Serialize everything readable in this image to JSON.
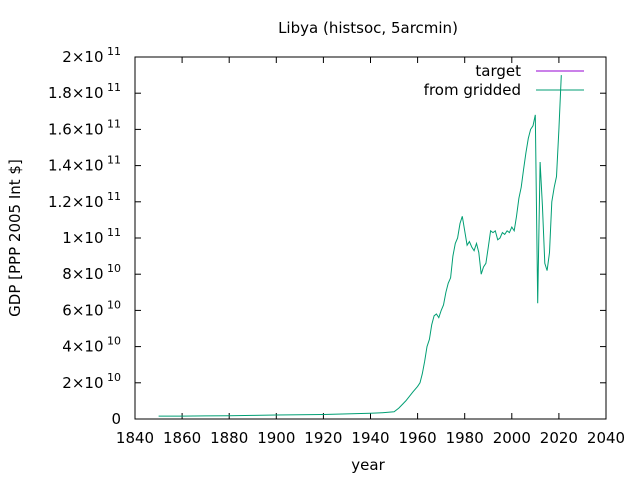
{
  "chart_data": {
    "type": "line",
    "title": "Libya (histsoc, 5arcmin)",
    "xlabel": "year",
    "ylabel": "GDP [PPP 2005 Int $]",
    "xlim": [
      1840,
      2040
    ],
    "ylim": [
      0,
      200000000000
    ],
    "grid": false,
    "legend_position": "top-right",
    "x_ticks": [
      {
        "value": 1840,
        "label": "1840"
      },
      {
        "value": 1860,
        "label": "1860"
      },
      {
        "value": 1880,
        "label": "1880"
      },
      {
        "value": 1900,
        "label": "1900"
      },
      {
        "value": 1920,
        "label": "1920"
      },
      {
        "value": 1940,
        "label": "1940"
      },
      {
        "value": 1960,
        "label": "1960"
      },
      {
        "value": 1980,
        "label": "1980"
      },
      {
        "value": 2000,
        "label": "2000"
      },
      {
        "value": 2020,
        "label": "2020"
      },
      {
        "value": 2040,
        "label": "2040"
      }
    ],
    "y_ticks": [
      {
        "value": 0,
        "mantissa": "0",
        "exponent": ""
      },
      {
        "value": 20000000000,
        "mantissa": "2×10",
        "exponent": "10"
      },
      {
        "value": 40000000000,
        "mantissa": "4×10",
        "exponent": "10"
      },
      {
        "value": 60000000000,
        "mantissa": "6×10",
        "exponent": "10"
      },
      {
        "value": 80000000000,
        "mantissa": "8×10",
        "exponent": "10"
      },
      {
        "value": 100000000000,
        "mantissa": "1×10",
        "exponent": "11"
      },
      {
        "value": 120000000000,
        "mantissa": "1.2×10",
        "exponent": "11"
      },
      {
        "value": 140000000000,
        "mantissa": "1.4×10",
        "exponent": "11"
      },
      {
        "value": 160000000000,
        "mantissa": "1.6×10",
        "exponent": "11"
      },
      {
        "value": 180000000000,
        "mantissa": "1.8×10",
        "exponent": "11"
      },
      {
        "value": 200000000000,
        "mantissa": "2×10",
        "exponent": "11"
      }
    ],
    "series": [
      {
        "name": "target",
        "color": "#9400d3",
        "x": [],
        "y": []
      },
      {
        "name": "from gridded",
        "color": "#009e73",
        "x": [
          1850,
          1860,
          1870,
          1880,
          1890,
          1900,
          1910,
          1920,
          1930,
          1940,
          1945,
          1950,
          1952,
          1955,
          1958,
          1960,
          1961,
          1962,
          1963,
          1964,
          1965,
          1966,
          1967,
          1968,
          1969,
          1970,
          1971,
          1972,
          1973,
          1974,
          1975,
          1976,
          1977,
          1978,
          1979,
          1980,
          1981,
          1982,
          1983,
          1984,
          1985,
          1986,
          1987,
          1988,
          1989,
          1990,
          1991,
          1992,
          1993,
          1994,
          1995,
          1996,
          1997,
          1998,
          1999,
          2000,
          2001,
          2002,
          2003,
          2004,
          2005,
          2006,
          2007,
          2008,
          2009,
          2010,
          2011,
          2012,
          2013,
          2014,
          2015,
          2016,
          2017,
          2018,
          2019,
          2020,
          2021
        ],
        "y": [
          1600000000,
          1600000000,
          1700000000,
          1800000000,
          2000000000,
          2200000000,
          2400000000,
          2500000000,
          2800000000,
          3200000000,
          3500000000,
          4000000000,
          6000000000,
          10000000000,
          15000000000,
          18000000000,
          20000000000,
          25000000000,
          32000000000,
          40000000000,
          44000000000,
          52000000000,
          57000000000,
          58000000000,
          56000000000,
          60000000000,
          63000000000,
          70000000000,
          75000000000,
          78000000000,
          90000000000,
          97000000000,
          100000000000,
          108000000000,
          112000000000,
          104000000000,
          96000000000,
          98000000000,
          95000000000,
          93000000000,
          97000000000,
          92000000000,
          80000000000,
          84000000000,
          86000000000,
          95000000000,
          104000000000,
          103000000000,
          104000000000,
          99000000000,
          100000000000,
          103000000000,
          102000000000,
          104000000000,
          103000000000,
          106000000000,
          104000000000,
          112000000000,
          122000000000,
          128000000000,
          138000000000,
          147000000000,
          155000000000,
          160000000000,
          162000000000,
          168000000000,
          64000000000,
          142000000000,
          118000000000,
          86000000000,
          82000000000,
          92000000000,
          120000000000,
          128000000000,
          134000000000,
          160000000000,
          190000000000
        ]
      }
    ]
  }
}
